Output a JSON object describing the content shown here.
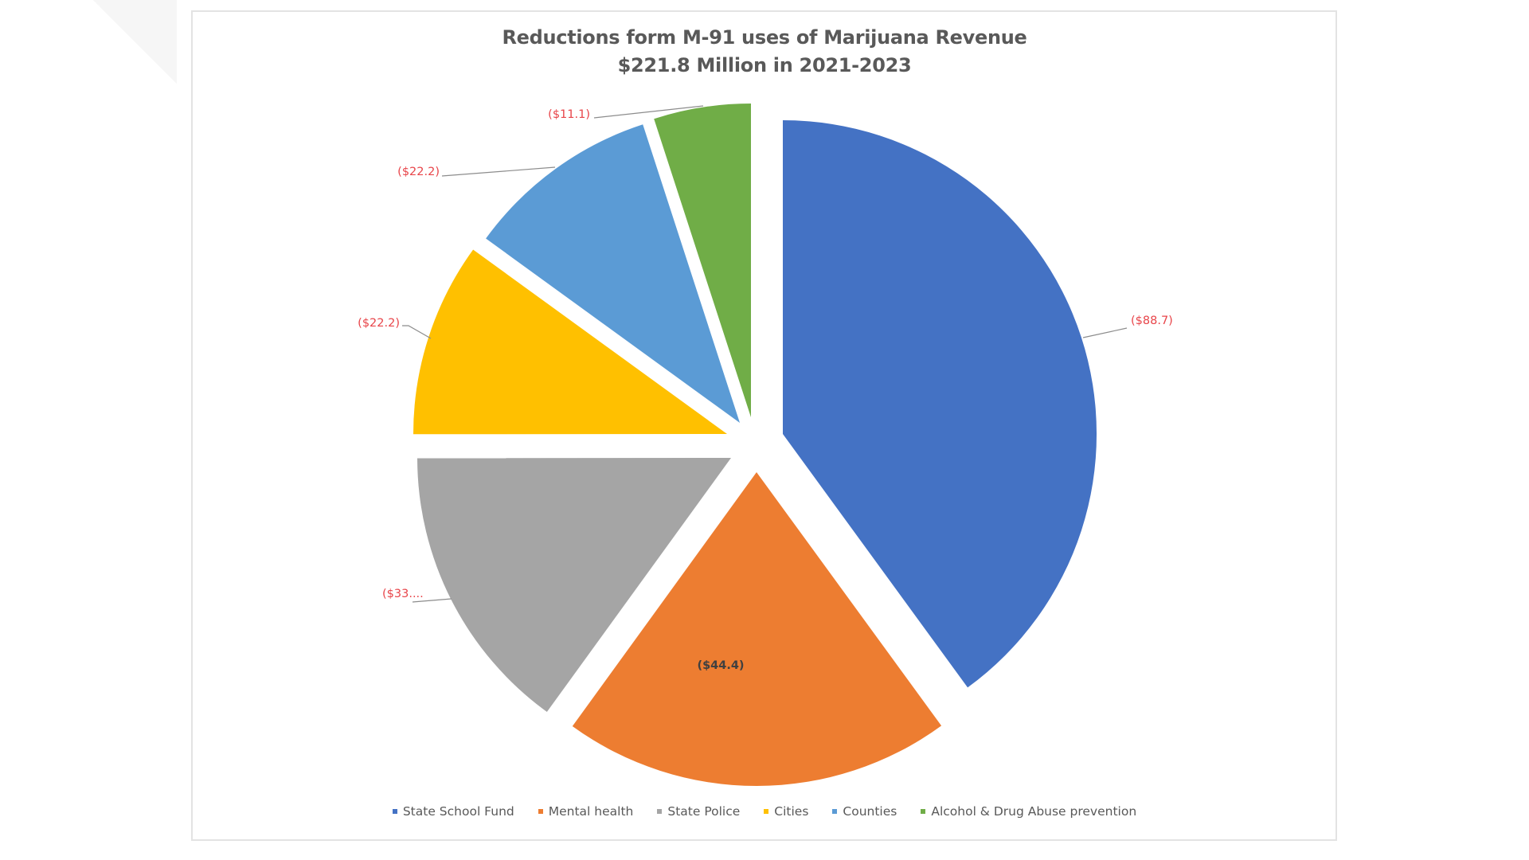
{
  "chart_data": {
    "type": "pie",
    "title": "Reductions form M-91 uses of Marijuana Revenue",
    "subtitle": "$221.8 Million in 2021-2023",
    "exploded": true,
    "categories": [
      "State School Fund",
      "Mental health",
      "State Police",
      "Cities",
      "Counties",
      "Alcohol & Drug Abuse prevention"
    ],
    "values": [
      -88.7,
      -44.4,
      -33.3,
      -22.2,
      -22.2,
      -11.1
    ],
    "data_labels": [
      "($88.7)",
      "($44.4)",
      "($33....",
      "($22.2)",
      "($22.2)",
      "($11.1)"
    ],
    "colors": [
      "#4472C4",
      "#ED7D31",
      "#A5A5A5",
      "#FFC000",
      "#5B9BD5",
      "#70AD47"
    ],
    "label_colors": [
      "#E8454A",
      "#404040",
      "#E8454A",
      "#E8454A",
      "#E8454A",
      "#E8454A"
    ],
    "legend_position": "bottom",
    "units": "Millions of dollars"
  },
  "legend": [
    {
      "label": "State School Fund",
      "color": "#4472C4"
    },
    {
      "label": "Mental health",
      "color": "#ED7D31"
    },
    {
      "label": "State Police",
      "color": "#A5A5A5"
    },
    {
      "label": "Cities",
      "color": "#FFC000"
    },
    {
      "label": "Counties",
      "color": "#5B9BD5"
    },
    {
      "label": "Alcohol & Drug Abuse prevention",
      "color": "#70AD47"
    }
  ]
}
